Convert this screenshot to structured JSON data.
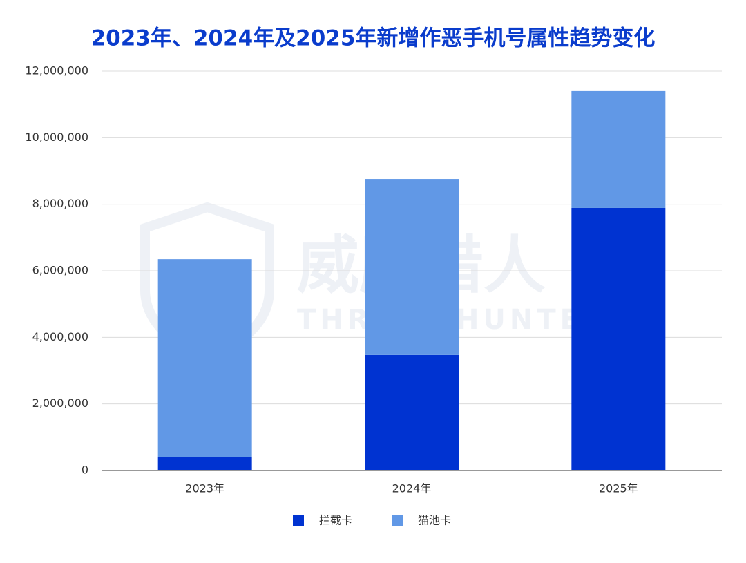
{
  "chart_data": {
    "type": "stacked_bar",
    "title": "2023年、2024年及2025年新增作恶手机号属性趋势变化",
    "watermark": {
      "main": "威胁猎人",
      "sub": "THREAT HUNTER"
    },
    "categories": [
      "2023年",
      "2024年",
      "2025年"
    ],
    "series": [
      {
        "name": "拦截卡",
        "color": "#0033d1",
        "values": [
          400000,
          3470000,
          7890000
        ]
      },
      {
        "name": "猫池卡",
        "color": "#6198e6",
        "values": [
          5950000,
          5290000,
          3510000
        ]
      }
    ],
    "ylim": [
      0,
      12000000
    ],
    "yticks": [
      0,
      {
        "value": 2000000,
        "label": "2,000,000"
      },
      {
        "value": 4000000,
        "label": "4,000,000"
      },
      {
        "value": 6000000,
        "label": "6,000,000"
      },
      {
        "value": 8000000,
        "label": "8,000,000"
      },
      {
        "value": 10000000,
        "label": "10,000,000"
      },
      {
        "value": 12000000,
        "label": "12,000,000"
      }
    ],
    "grid": true,
    "legend": "bottom"
  }
}
